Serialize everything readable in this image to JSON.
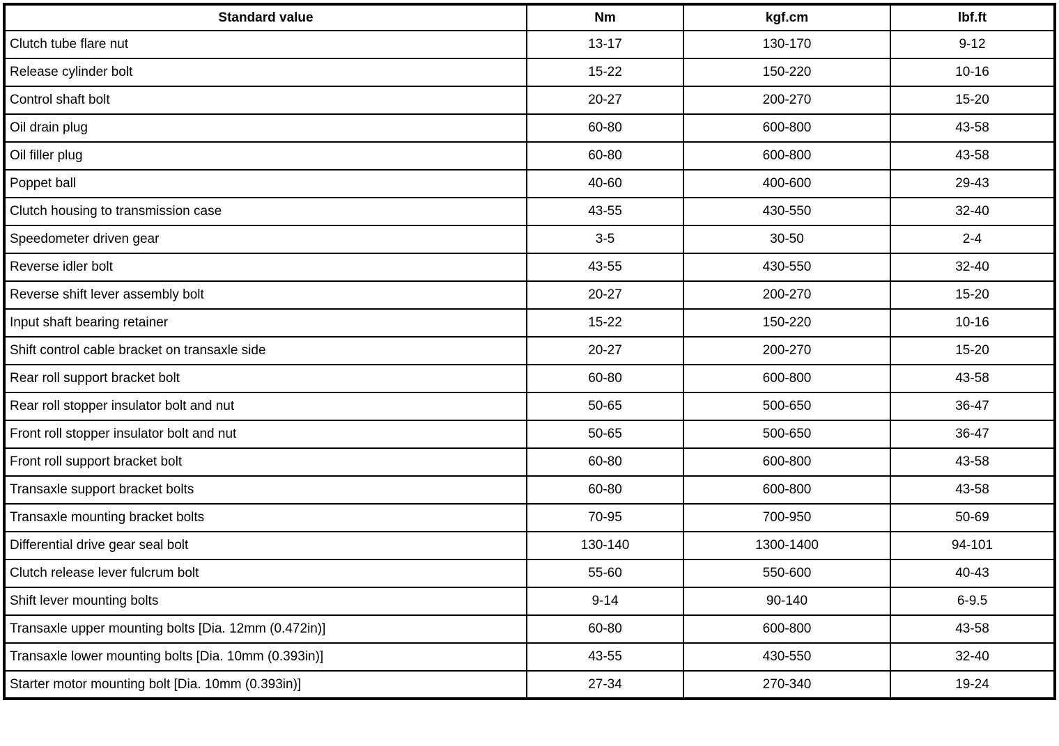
{
  "table": {
    "headers": [
      "Standard value",
      "Nm",
      "kgf.cm",
      "lbf.ft"
    ],
    "rows": [
      [
        "Clutch tube flare nut",
        "13-17",
        "130-170",
        "9-12"
      ],
      [
        "Release cylinder bolt",
        "15-22",
        "150-220",
        "10-16"
      ],
      [
        "Control shaft bolt",
        "20-27",
        "200-270",
        "15-20"
      ],
      [
        "Oil drain plug",
        "60-80",
        "600-800",
        "43-58"
      ],
      [
        "Oil filler plug",
        "60-80",
        "600-800",
        "43-58"
      ],
      [
        "Poppet ball",
        "40-60",
        "400-600",
        "29-43"
      ],
      [
        "Clutch housing to transmission case",
        "43-55",
        "430-550",
        "32-40"
      ],
      [
        "Speedometer driven gear",
        "3-5",
        "30-50",
        "2-4"
      ],
      [
        "Reverse idler bolt",
        "43-55",
        "430-550",
        "32-40"
      ],
      [
        "Reverse shift lever assembly bolt",
        "20-27",
        "200-270",
        "15-20"
      ],
      [
        "Input shaft bearing retainer",
        "15-22",
        "150-220",
        "10-16"
      ],
      [
        "Shift control cable bracket on transaxle side",
        "20-27",
        "200-270",
        "15-20"
      ],
      [
        "Rear roll support bracket bolt",
        "60-80",
        "600-800",
        "43-58"
      ],
      [
        "Rear roll stopper insulator bolt and nut",
        "50-65",
        "500-650",
        "36-47"
      ],
      [
        "Front roll stopper insulator bolt and nut",
        "50-65",
        "500-650",
        "36-47"
      ],
      [
        "Front roll support bracket bolt",
        "60-80",
        "600-800",
        "43-58"
      ],
      [
        "Transaxle support bracket bolts",
        "60-80",
        "600-800",
        "43-58"
      ],
      [
        "Transaxle mounting bracket bolts",
        "70-95",
        "700-950",
        "50-69"
      ],
      [
        "Differential drive gear seal bolt",
        "130-140",
        "1300-1400",
        "94-101"
      ],
      [
        "Clutch release lever fulcrum bolt",
        "55-60",
        "550-600",
        "40-43"
      ],
      [
        "Shift lever mounting bolts",
        "9-14",
        "90-140",
        "6-9.5"
      ],
      [
        "Transaxle upper mounting bolts [Dia. 12mm (0.472in)]",
        "60-80",
        "600-800",
        "43-58"
      ],
      [
        "Transaxle lower mounting bolts [Dia. 10mm (0.393in)]",
        "43-55",
        "430-550",
        "32-40"
      ],
      [
        "Starter motor mounting bolt [Dia. 10mm (0.393in)]",
        "27-34",
        "270-340",
        "19-24"
      ]
    ]
  }
}
